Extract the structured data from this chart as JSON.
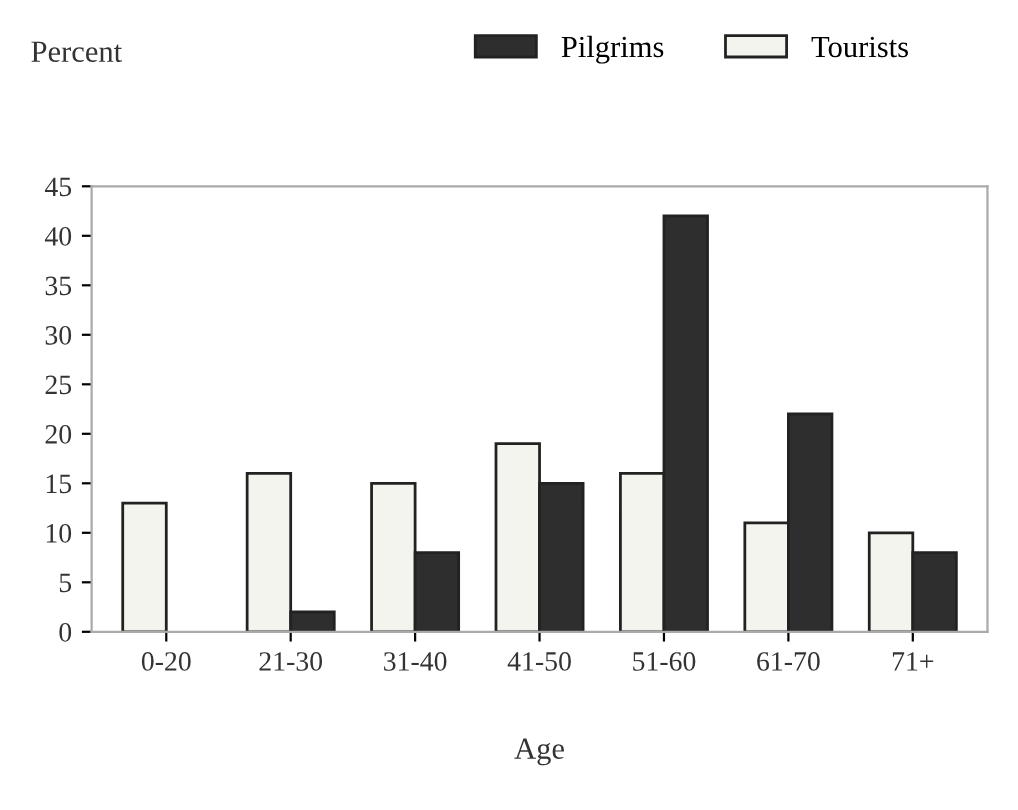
{
  "chart_data": {
    "type": "bar",
    "ylabel": "Percent",
    "xlabel": "Age",
    "categories": [
      "0-20",
      "21-30",
      "31-40",
      "41-50",
      "51-60",
      "61-70",
      "71+"
    ],
    "series": [
      {
        "name": "Tourists",
        "color": "#f4f4ee",
        "values": [
          13,
          16,
          15,
          19,
          16,
          11,
          10
        ]
      },
      {
        "name": "Pilgrims",
        "color": "#2e2e2e",
        "values": [
          null,
          2,
          8,
          15,
          42,
          22,
          8
        ]
      }
    ],
    "ylim": [
      0,
      45
    ],
    "yticks": [
      0,
      5,
      10,
      15,
      20,
      25,
      30,
      35,
      40,
      45
    ],
    "grid": false,
    "legend": "top right"
  }
}
